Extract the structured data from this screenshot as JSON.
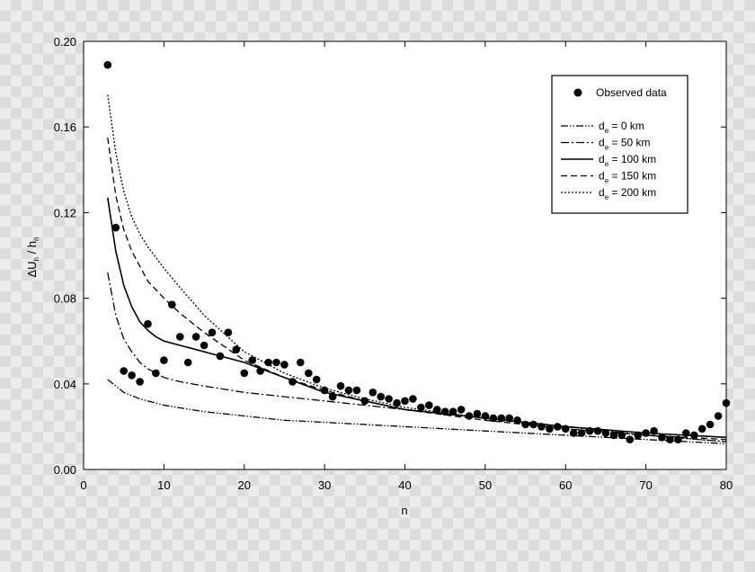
{
  "chart_data": {
    "type": "scatter",
    "title": "",
    "xlabel": "n",
    "ylabel_parts": {
      "main": "ΔU",
      "sub1": "n",
      "mid": " / h",
      "sub2": "n"
    },
    "xlim": [
      0,
      80
    ],
    "ylim": [
      0,
      0.2
    ],
    "x_ticks": [
      "0",
      "10",
      "20",
      "30",
      "40",
      "50",
      "60",
      "70",
      "80"
    ],
    "y_ticks": [
      "0.00",
      "0.04",
      "0.08",
      "0.12",
      "0.16",
      "0.20"
    ],
    "grid": false,
    "legend_placement": "top-right",
    "observed": {
      "name": "Observed data",
      "x": [
        3,
        4,
        5,
        6,
        7,
        8,
        9,
        10,
        11,
        12,
        13,
        14,
        15,
        16,
        17,
        18,
        19,
        20,
        21,
        22,
        23,
        24,
        25,
        26,
        27,
        28,
        29,
        30,
        31,
        32,
        33,
        34,
        35,
        36,
        37,
        38,
        39,
        40,
        41,
        42,
        43,
        44,
        45,
        46,
        47,
        48,
        49,
        50,
        51,
        52,
        53,
        54,
        55,
        56,
        57,
        58,
        59,
        60,
        61,
        62,
        63,
        64,
        65,
        66,
        67,
        68,
        69,
        70,
        71,
        72,
        73,
        74,
        75,
        76,
        77,
        78,
        79,
        80
      ],
      "y": [
        0.189,
        0.113,
        0.046,
        0.044,
        0.041,
        0.068,
        0.045,
        0.051,
        0.077,
        0.062,
        0.05,
        0.062,
        0.058,
        0.064,
        0.053,
        0.064,
        0.056,
        0.045,
        0.051,
        0.046,
        0.05,
        0.05,
        0.049,
        0.041,
        0.05,
        0.045,
        0.042,
        0.037,
        0.034,
        0.039,
        0.037,
        0.037,
        0.032,
        0.036,
        0.034,
        0.033,
        0.031,
        0.032,
        0.033,
        0.029,
        0.03,
        0.028,
        0.027,
        0.027,
        0.028,
        0.025,
        0.026,
        0.025,
        0.024,
        0.024,
        0.024,
        0.023,
        0.021,
        0.021,
        0.02,
        0.019,
        0.02,
        0.019,
        0.017,
        0.017,
        0.018,
        0.018,
        0.017,
        0.016,
        0.016,
        0.014,
        0.016,
        0.017,
        0.018,
        0.015,
        0.014,
        0.014,
        0.017,
        0.016,
        0.019,
        0.021,
        0.025,
        0.031
      ]
    },
    "series": [
      {
        "name_main": "d",
        "name_sub": "e",
        "name_rest": " = 0 km",
        "style": "dash-dot-dot",
        "x": [
          3,
          5,
          7,
          10,
          15,
          20,
          25,
          30,
          40,
          50,
          60,
          70,
          80
        ],
        "y": [
          0.042,
          0.036,
          0.033,
          0.03,
          0.027,
          0.025,
          0.023,
          0.022,
          0.02,
          0.018,
          0.016,
          0.014,
          0.012
        ]
      },
      {
        "name_main": "d",
        "name_sub": "e",
        "name_rest": " = 50 km",
        "style": "dash-dot",
        "x": [
          3,
          4,
          5,
          6,
          7,
          8,
          10,
          12,
          15,
          20,
          25,
          30,
          35,
          40,
          50,
          60,
          70,
          80
        ],
        "y": [
          0.092,
          0.072,
          0.061,
          0.055,
          0.05,
          0.047,
          0.043,
          0.041,
          0.039,
          0.036,
          0.034,
          0.032,
          0.03,
          0.028,
          0.024,
          0.02,
          0.016,
          0.013
        ]
      },
      {
        "name_main": "d",
        "name_sub": "e",
        "name_rest": " = 100 km",
        "style": "solid",
        "x": [
          3,
          4,
          5,
          6,
          7,
          8,
          9,
          10,
          12,
          14,
          16,
          18,
          20,
          25,
          30,
          35,
          40,
          50,
          60,
          70,
          80
        ],
        "y": [
          0.127,
          0.102,
          0.086,
          0.076,
          0.069,
          0.065,
          0.062,
          0.06,
          0.058,
          0.056,
          0.054,
          0.052,
          0.05,
          0.043,
          0.036,
          0.032,
          0.028,
          0.024,
          0.02,
          0.017,
          0.015
        ]
      },
      {
        "name_main": "d",
        "name_sub": "e",
        "name_rest": " = 150 km",
        "style": "dashed",
        "x": [
          3,
          4,
          5,
          6,
          8,
          10,
          12,
          15,
          20,
          25,
          30,
          35,
          40,
          50,
          60,
          70,
          80
        ],
        "y": [
          0.155,
          0.128,
          0.112,
          0.102,
          0.088,
          0.08,
          0.073,
          0.064,
          0.051,
          0.043,
          0.037,
          0.032,
          0.028,
          0.023,
          0.019,
          0.016,
          0.014
        ]
      },
      {
        "name_main": "d",
        "name_sub": "e",
        "name_rest": " = 200 km",
        "style": "dotted",
        "x": [
          3,
          4,
          5,
          6,
          7,
          8,
          10,
          12,
          15,
          20,
          25,
          30,
          35,
          40,
          50,
          60,
          70,
          80
        ],
        "y": [
          0.175,
          0.148,
          0.13,
          0.118,
          0.11,
          0.104,
          0.094,
          0.085,
          0.072,
          0.055,
          0.045,
          0.038,
          0.033,
          0.029,
          0.024,
          0.019,
          0.016,
          0.013
        ]
      }
    ]
  }
}
